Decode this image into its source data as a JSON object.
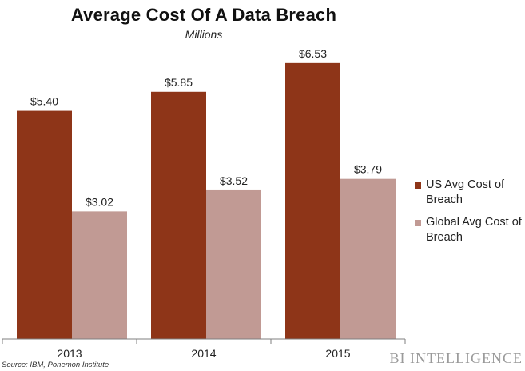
{
  "chart_data": {
    "type": "bar",
    "title": "Average Cost Of A Data Breach",
    "subtitle": "Millions",
    "categories": [
      "2013",
      "2014",
      "2015"
    ],
    "series": [
      {
        "name": "US Avg Cost of Breach",
        "values": [
          5.4,
          5.85,
          6.53
        ],
        "labels": [
          "$5.40",
          "$5.85",
          "$6.53"
        ],
        "color": "#8e3518"
      },
      {
        "name": "Global Avg Cost of Breach",
        "values": [
          3.02,
          3.52,
          3.79
        ],
        "labels": [
          "$3.02",
          "$3.52",
          "$3.79"
        ],
        "color": "#c19a94"
      }
    ],
    "ylim": [
      0,
      7.0
    ],
    "grid": false,
    "legend_position": "right"
  },
  "source": "Source: IBM, Ponemon Institute",
  "brand": "BI INTELLIGENCE",
  "colors": {
    "axis": "#7f7f7f",
    "background": "#ffffff"
  }
}
